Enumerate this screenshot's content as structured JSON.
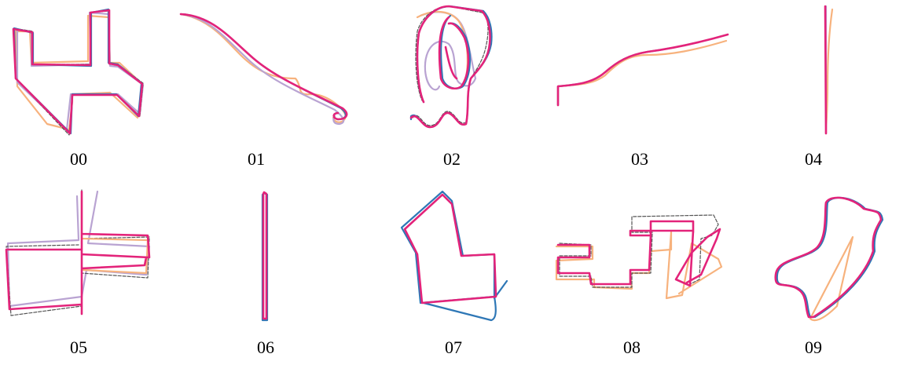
{
  "colors": {
    "gt": "#555555",
    "orange": "#f7b27d",
    "lavender": "#b9a3d2",
    "blue": "#2e77b6",
    "magenta": "#e3237a"
  },
  "panels": [
    {
      "id": "00"
    },
    {
      "id": "01"
    },
    {
      "id": "02"
    },
    {
      "id": "03"
    },
    {
      "id": "04"
    },
    {
      "id": "05"
    },
    {
      "id": "06"
    },
    {
      "id": "07"
    },
    {
      "id": "08"
    },
    {
      "id": "09"
    }
  ]
}
